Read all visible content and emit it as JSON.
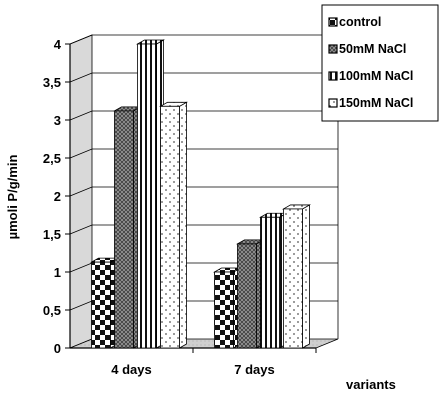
{
  "chart_data": {
    "type": "bar",
    "title": "",
    "xlabel": "variants",
    "ylabel": "µmoli P/g/min",
    "ylim": [
      0,
      4
    ],
    "yticks": [
      "0",
      "0,5",
      "1",
      "1,5",
      "2",
      "2,5",
      "3",
      "3,5",
      "4"
    ],
    "categories": [
      "4 days",
      "7 days"
    ],
    "series": [
      {
        "name": "control",
        "values": [
          1.13,
          1.0
        ],
        "pattern": "checker"
      },
      {
        "name": "50mM NaCl",
        "values": [
          3.12,
          1.37
        ],
        "pattern": "crosshatch"
      },
      {
        "name": "100mM NaCl",
        "values": [
          4.0,
          1.72
        ],
        "pattern": "vstripe"
      },
      {
        "name": "150mM NaCl",
        "values": [
          3.18,
          1.83
        ],
        "pattern": "dots"
      }
    ],
    "grid": true,
    "legend_position": "top-right"
  }
}
